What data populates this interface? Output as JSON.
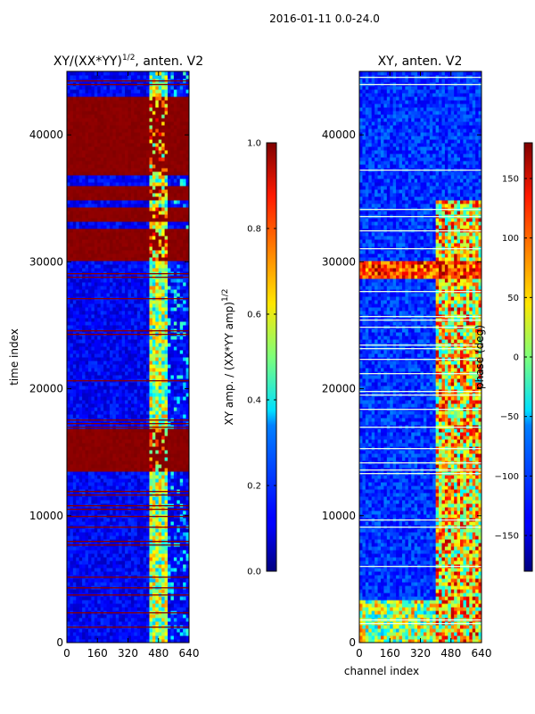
{
  "suptitle": "2016-01-11 0.0-24.0",
  "chart_data": [
    {
      "type": "heatmap",
      "title_base": "XY/(XX*YY)",
      "title_exp": "1/2",
      "title_suffix": ", anten. V2",
      "xlabel": "",
      "ylabel": "time index",
      "xlim": [
        0,
        640
      ],
      "ylim": [
        0,
        45000
      ],
      "xticks": [
        0,
        160,
        320,
        480,
        640
      ],
      "yticks": [
        0,
        10000,
        20000,
        30000,
        40000
      ],
      "colorbar": {
        "label_base": "XY amp. / (XX*YY amp)",
        "label_exp": "1/2",
        "range": [
          0.0,
          1.0
        ],
        "ticks": [
          "0.0",
          "0.2",
          "0.4",
          "0.6",
          "0.8",
          "1.0"
        ]
      },
      "high_bands": [
        [
          17000,
          13500
        ],
        [
          30200,
          32600
        ],
        [
          33300,
          34400
        ],
        [
          34800,
          36000
        ],
        [
          36900,
          42900
        ]
      ],
      "bright_channel_band": [
        430,
        520
      ]
    },
    {
      "type": "heatmap",
      "title": "XY, anten. V2",
      "xlabel": "channel index",
      "ylabel": "",
      "xlim": [
        0,
        640
      ],
      "ylim": [
        0,
        45000
      ],
      "xticks": [
        0,
        160,
        320,
        480,
        640
      ],
      "yticks": [
        0,
        10000,
        20000,
        30000,
        40000
      ],
      "colorbar": {
        "label": "phase (deg)",
        "range": [
          -180,
          180
        ],
        "ticks": [
          "-150",
          "-100",
          "-50",
          "0",
          "50",
          "100",
          "150"
        ]
      },
      "hot_band": [
        28800,
        30200
      ],
      "bright_channel_band": [
        400,
        640
      ]
    }
  ]
}
